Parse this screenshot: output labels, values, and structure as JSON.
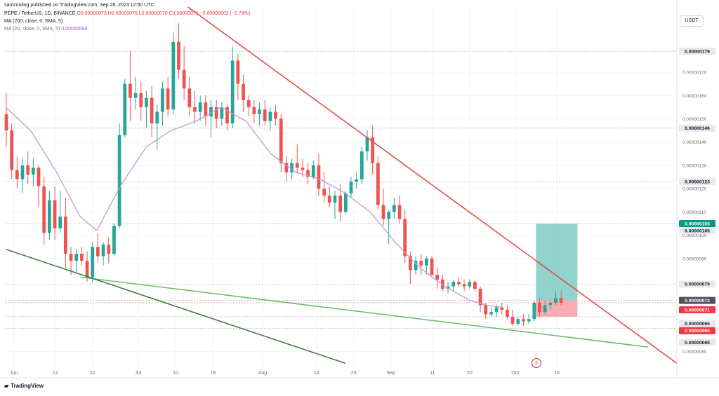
{
  "header": {
    "publisher": "samcooling published on TradingView.com, Sep 28, 2023 12:50 UTC",
    "symbol": "PEPE / TetherUS, 1D, BINANCE",
    "ohlc": "O0.00000073 H0.00000076 L0.00000070 C0.00000071 −0.00000002 (−2.74%)",
    "ma200_label": "MA (200, close, 0, SMA, 5)",
    "ma20_label": "MA (20, close, 0, SMA, 5)",
    "ma20_value": "0.00000068"
  },
  "currency_button": "USDT",
  "brand": "TradingView",
  "icons": {
    "logo": "tradingview-logo-icon",
    "flash": "lightning-icon"
  },
  "colors": {
    "up": "#26a69a",
    "down": "#ef5350",
    "ma": "#c39bd3",
    "resistance": "#e0453f",
    "support": "#66bb6a",
    "support_dark": "#2e7d32",
    "target_zone": "#80cbc4",
    "stop_zone": "#f8a4a8"
  },
  "chart_data": {
    "type": "candlestick",
    "symbol": "PEPE / TetherUS",
    "timeframe": "1D",
    "ylim": [
      4.3e-07,
      1.98e-06
    ],
    "x_range_days": [
      0,
      162
    ],
    "x_ticks": [
      {
        "day": 2,
        "label": "Jun"
      },
      {
        "day": 12,
        "label": "12"
      },
      {
        "day": 21,
        "label": "21"
      },
      {
        "day": 32,
        "label": "Jul"
      },
      {
        "day": 41,
        "label": "10"
      },
      {
        "day": 50,
        "label": "19"
      },
      {
        "day": 62,
        "label": "Aug"
      },
      {
        "day": 75,
        "label": "14"
      },
      {
        "day": 84,
        "label": "23"
      },
      {
        "day": 93,
        "label": "Sep"
      },
      {
        "day": 103,
        "label": "11"
      },
      {
        "day": 112,
        "label": "20"
      },
      {
        "day": 123,
        "label": "Oct"
      },
      {
        "day": 133,
        "label": "10"
      }
    ],
    "y_ticks": [
      5e-07,
      9e-07,
      1e-06,
      1.1e-06,
      1.2e-06,
      1.3e-06,
      1.4e-06,
      1.5e-06,
      1.6e-06,
      1.7e-06
    ],
    "price_tags": [
      {
        "value": 1.79e-06,
        "label": "0.00000179",
        "style": "grey"
      },
      {
        "value": 1.46e-06,
        "label": "0.00000146",
        "style": "grey"
      },
      {
        "value": 1.23e-06,
        "label": "0.00000123",
        "style": "grey"
      },
      {
        "value": 1.05e-06,
        "label": "0.00000105",
        "style": "teal"
      },
      {
        "value": 1.05e-06,
        "label": "0.00000105",
        "style": "grey"
      },
      {
        "value": 7.9e-07,
        "label": "0.00000079",
        "style": "grey"
      },
      {
        "value": 7.2e-07,
        "label": "0.00000072",
        "style": "dark"
      },
      {
        "value": 7.1e-07,
        "label": "0.00000071",
        "style": "red"
      },
      {
        "value": 6.5e-07,
        "label": "0.00000065",
        "style": "grey"
      },
      {
        "value": 6.5e-07,
        "label": "0.00000065",
        "style": "red"
      },
      {
        "value": 6e-07,
        "label": "0.00000060",
        "style": "grey"
      }
    ],
    "candles": [
      [
        1.52e-06,
        1.61e-06,
        1.38e-06,
        1.45e-06
      ],
      [
        1.45e-06,
        1.48e-06,
        1.24e-06,
        1.28e-06
      ],
      [
        1.28e-06,
        1.34e-06,
        1.2e-06,
        1.24e-06
      ],
      [
        1.24e-06,
        1.33e-06,
        1.18e-06,
        1.3e-06
      ],
      [
        1.3e-06,
        1.36e-06,
        1.22e-06,
        1.26e-06
      ],
      [
        1.26e-06,
        1.33e-06,
        1.21e-06,
        1.29e-06
      ],
      [
        1.29e-06,
        1.3e-06,
        1.12e-06,
        1.21e-06
      ],
      [
        1.21e-06,
        1.25e-06,
        9.6e-07,
        1.01e-06
      ],
      [
        1.01e-06,
        1.19e-06,
        9.8e-07,
        1.15e-06
      ],
      [
        1.15e-06,
        1.21e-06,
        9.8e-07,
        1.03e-06
      ],
      [
        1.03e-06,
        1.19e-06,
        1.01e-06,
        1.08e-06
      ],
      [
        1.08e-06,
        1.16e-06,
        8.6e-07,
        9.2e-07
      ],
      [
        9.2e-07,
        9.5e-07,
        8.3e-07,
        8.9e-07
      ],
      [
        8.9e-07,
        9.4e-07,
        8.4e-07,
        9.2e-07
      ],
      [
        9.2e-07,
        9.5e-07,
        8.7e-07,
        8.9e-07
      ],
      [
        8.9e-07,
        9.3e-07,
        8e-07,
        8.2e-07
      ],
      [
        8.2e-07,
        9.7e-07,
        8e-07,
        9.5e-07
      ],
      [
        9.5e-07,
        1.01e-06,
        8.8e-07,
        9.1e-07
      ],
      [
        9.1e-07,
        9.7e-07,
        8.7e-07,
        9.6e-07
      ],
      [
        9.6e-07,
        9.9e-07,
        8.8e-07,
        9.2e-07
      ],
      [
        9.2e-07,
        1.05e-06,
        9.1e-07,
        1.04e-06
      ],
      [
        1.04e-06,
        1.48e-06,
        1.03e-06,
        1.43e-06
      ],
      [
        1.43e-06,
        1.67e-06,
        1.42e-06,
        1.65e-06
      ],
      [
        1.65e-06,
        1.79e-06,
        1.49e-06,
        1.59e-06
      ],
      [
        1.59e-06,
        1.68e-06,
        1.54e-06,
        1.61e-06
      ],
      [
        1.61e-06,
        1.66e-06,
        1.49e-06,
        1.55e-06
      ],
      [
        1.55e-06,
        1.62e-06,
        1.46e-06,
        1.59e-06
      ],
      [
        1.59e-06,
        1.64e-06,
        1.42e-06,
        1.48e-06
      ],
      [
        1.48e-06,
        1.56e-06,
        1.37e-06,
        1.53e-06
      ],
      [
        1.53e-06,
        1.66e-06,
        1.47e-06,
        1.63e-06
      ],
      [
        1.63e-06,
        1.68e-06,
        1.51e-06,
        1.54e-06
      ],
      [
        1.54e-06,
        1.87e-06,
        1.52e-06,
        1.83e-06
      ],
      [
        1.83e-06,
        1.91e-06,
        1.67e-06,
        1.71e-06
      ],
      [
        1.71e-06,
        1.81e-06,
        1.58e-06,
        1.63e-06
      ],
      [
        1.63e-06,
        1.68e-06,
        1.51e-06,
        1.55e-06
      ],
      [
        1.55e-06,
        1.62e-06,
        1.48e-06,
        1.53e-06
      ],
      [
        1.53e-06,
        1.6e-06,
        1.49e-06,
        1.57e-06
      ],
      [
        1.57e-06,
        1.6e-06,
        1.47e-06,
        1.51e-06
      ],
      [
        1.51e-06,
        1.58e-06,
        1.42e-06,
        1.55e-06
      ],
      [
        1.55e-06,
        1.58e-06,
        1.46e-06,
        1.5e-06
      ],
      [
        1.5e-06,
        1.57e-06,
        1.47e-06,
        1.55e-06
      ],
      [
        1.55e-06,
        1.56e-06,
        1.45e-06,
        1.48e-06
      ],
      [
        1.48e-06,
        1.81e-06,
        1.46e-06,
        1.75e-06
      ],
      [
        1.75e-06,
        1.78e-06,
        1.58e-06,
        1.65e-06
      ],
      [
        1.65e-06,
        1.69e-06,
        1.53e-06,
        1.58e-06
      ],
      [
        1.58e-06,
        1.6e-06,
        1.51e-06,
        1.55e-06
      ],
      [
        1.55e-06,
        1.58e-06,
        1.48e-06,
        1.52e-06
      ],
      [
        1.52e-06,
        1.57e-06,
        1.47e-06,
        1.54e-06
      ],
      [
        1.54e-06,
        1.58e-06,
        1.47e-06,
        1.49e-06
      ],
      [
        1.49e-06,
        1.55e-06,
        1.45e-06,
        1.53e-06
      ],
      [
        1.53e-06,
        1.56e-06,
        1.47e-06,
        1.5e-06
      ],
      [
        1.5e-06,
        1.52e-06,
        1.27e-06,
        1.31e-06
      ],
      [
        1.31e-06,
        1.34e-06,
        1.23e-06,
        1.27e-06
      ],
      [
        1.27e-06,
        1.33e-06,
        1.24e-06,
        1.31e-06
      ],
      [
        1.31e-06,
        1.39e-06,
        1.27e-06,
        1.29e-06
      ],
      [
        1.29e-06,
        1.33e-06,
        1.25e-06,
        1.28e-06
      ],
      [
        1.28e-06,
        1.31e-06,
        1.22e-06,
        1.25e-06
      ],
      [
        1.25e-06,
        1.32e-06,
        1.24e-06,
        1.3e-06
      ],
      [
        1.3e-06,
        1.35e-06,
        1.17e-06,
        1.2e-06
      ],
      [
        1.2e-06,
        1.27e-06,
        1.14e-06,
        1.17e-06
      ],
      [
        1.17e-06,
        1.21e-06,
        1.12e-06,
        1.14e-06
      ],
      [
        1.14e-06,
        1.19e-06,
        1.07e-06,
        1.17e-06
      ],
      [
        1.17e-06,
        1.22e-06,
        1.06e-06,
        1.1e-06
      ],
      [
        1.1e-06,
        1.19e-06,
        1.09e-06,
        1.18e-06
      ],
      [
        1.18e-06,
        1.25e-06,
        1.16e-06,
        1.23e-06
      ],
      [
        1.23e-06,
        1.27e-06,
        1.2e-06,
        1.24e-06
      ],
      [
        1.24e-06,
        1.38e-06,
        1.22e-06,
        1.36e-06
      ],
      [
        1.36e-06,
        1.45e-06,
        1.32e-06,
        1.42e-06
      ],
      [
        1.42e-06,
        1.47e-06,
        1.26e-06,
        1.31e-06
      ],
      [
        1.31e-06,
        1.34e-06,
        1.11e-06,
        1.13e-06
      ],
      [
        1.13e-06,
        1.2e-06,
        1.04e-06,
        1.07e-06
      ],
      [
        1.07e-06,
        1.11e-06,
        9.6e-07,
        1.1e-06
      ],
      [
        1.1e-06,
        1.16e-06,
        1.07e-06,
        1.13e-06
      ],
      [
        1.13e-06,
        1.17e-06,
        1.05e-06,
        1.07e-06
      ],
      [
        1.07e-06,
        1.11e-06,
        8.8e-07,
        9.1e-07
      ],
      [
        9.1e-07,
        9.3e-07,
        7.9e-07,
        8.5e-07
      ],
      [
        8.5e-07,
        9.1e-07,
        8.3e-07,
        8.9e-07
      ],
      [
        8.9e-07,
        9.2e-07,
        8.3e-07,
        8.7e-07
      ],
      [
        8.7e-07,
        9.1e-07,
        8.3e-07,
        9e-07
      ],
      [
        9e-07,
        9.1e-07,
        8.2e-07,
        8.3e-07
      ],
      [
        8.3e-07,
        8.6e-07,
        7.7e-07,
        8.1e-07
      ],
      [
        8.1e-07,
        8.3e-07,
        7.6e-07,
        7.7e-07
      ],
      [
        7.7e-07,
        8e-07,
        7.5e-07,
        7.8e-07
      ],
      [
        7.8e-07,
        8.1e-07,
        7.6e-07,
        8e-07
      ],
      [
        8e-07,
        8.2e-07,
        7.8e-07,
        7.9e-07
      ],
      [
        7.9e-07,
        8.1e-07,
        7.6e-07,
        7.8e-07
      ],
      [
        7.8e-07,
        8.1e-07,
        7.7e-07,
        8e-07
      ],
      [
        8e-07,
        8.1e-07,
        7.6e-07,
        7.7e-07
      ],
      [
        7.7e-07,
        7.8e-07,
        6.7e-07,
        7e-07
      ],
      [
        7e-07,
        7.1e-07,
        6.4e-07,
        6.6e-07
      ],
      [
        6.6e-07,
        6.9e-07,
        6.5e-07,
        6.7e-07
      ],
      [
        6.7e-07,
        7e-07,
        6.5e-07,
        6.9e-07
      ],
      [
        6.9e-07,
        7.1e-07,
        6.6e-07,
        6.8e-07
      ],
      [
        6.8e-07,
        7e-07,
        6.4e-07,
        6.5e-07
      ],
      [
        6.5e-07,
        6.8e-07,
        6.1e-07,
        6.2e-07
      ],
      [
        6.2e-07,
        6.5e-07,
        6.1e-07,
        6.4e-07
      ],
      [
        6.4e-07,
        6.6e-07,
        6.1e-07,
        6.3e-07
      ],
      [
        6.3e-07,
        6.6e-07,
        6.2e-07,
        6.4e-07
      ],
      [
        6.4e-07,
        7.2e-07,
        6.3e-07,
        7.1e-07
      ],
      [
        7.1e-07,
        7.3e-07,
        6.5e-07,
        6.7e-07
      ],
      [
        6.7e-07,
        7.2e-07,
        6.6e-07,
        7e-07
      ],
      [
        7e-07,
        7.2e-07,
        6.8e-07,
        7.1e-07
      ],
      [
        7.1e-07,
        7.6e-07,
        7e-07,
        7.3e-07
      ],
      [
        7.3e-07,
        7.6e-07,
        7e-07,
        7.1e-07
      ]
    ],
    "candle_start_day": 0,
    "candle_step_days": 1.3,
    "moving_average": {
      "name": "MA 20",
      "points": [
        [
          0,
          1.55e-06
        ],
        [
          6,
          1.45e-06
        ],
        [
          12,
          1.28e-06
        ],
        [
          18,
          1.08e-06
        ],
        [
          22,
          1.02e-06
        ],
        [
          28,
          1.22e-06
        ],
        [
          34,
          1.38e-06
        ],
        [
          40,
          1.45e-06
        ],
        [
          46,
          1.49e-06
        ],
        [
          52,
          1.55e-06
        ],
        [
          58,
          1.49e-06
        ],
        [
          64,
          1.35e-06
        ],
        [
          70,
          1.27e-06
        ],
        [
          76,
          1.24e-06
        ],
        [
          82,
          1.18e-06
        ],
        [
          88,
          1.1e-06
        ],
        [
          94,
          9.7e-07
        ],
        [
          100,
          8.6e-07
        ],
        [
          106,
          7.8e-07
        ],
        [
          112,
          7.2e-07
        ],
        [
          116,
          7e-07
        ],
        [
          120,
          6.9e-07
        ]
      ]
    },
    "trendlines": [
      {
        "name": "resistance",
        "color": "#e0453f",
        "from": [
          44,
          1.98e-06
        ],
        "to": [
          162,
          4.5e-07
        ]
      },
      {
        "name": "support-upper",
        "color": "#66bb6a",
        "from": [
          18,
          8.2e-07
        ],
        "to": [
          155,
          5.2e-07
        ]
      },
      {
        "name": "support-lower",
        "color": "#2e7d32",
        "from": [
          0,
          9.4e-07
        ],
        "to": [
          82,
          4.5e-07
        ]
      }
    ],
    "position": {
      "start_day": 128,
      "end_day": 138,
      "target": 1.05e-06,
      "entry": 7.2e-07,
      "stop": 6.5e-07
    }
  }
}
